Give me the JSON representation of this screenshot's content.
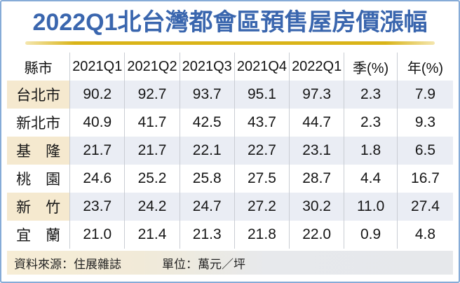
{
  "chart_data": {
    "type": "table",
    "title": "2022Q1北台灣都會區預售屋房價漲幅",
    "columns": [
      "縣市",
      "2021Q1",
      "2021Q2",
      "2021Q3",
      "2021Q4",
      "2022Q1",
      "季(%)",
      "年(%)"
    ],
    "rows": [
      [
        "台北市",
        "90.2",
        "92.7",
        "93.7",
        "95.1",
        "97.3",
        "2.3",
        "7.9"
      ],
      [
        "新北市",
        "40.9",
        "41.7",
        "42.5",
        "43.7",
        "44.7",
        "2.3",
        "9.3"
      ],
      [
        "基　隆",
        "21.7",
        "21.7",
        "22.1",
        "22.7",
        "23.1",
        "1.8",
        "6.5"
      ],
      [
        "桃　園",
        "24.6",
        "25.2",
        "25.8",
        "27.5",
        "28.7",
        "4.4",
        "16.7"
      ],
      [
        "新　竹",
        "23.7",
        "24.2",
        "24.7",
        "27.2",
        "30.2",
        "11.0",
        "27.4"
      ],
      [
        "宜　蘭",
        "21.0",
        "21.4",
        "21.3",
        "21.8",
        "22.0",
        "0.9",
        "4.8"
      ]
    ],
    "source": "資料來源：住展雜誌",
    "unit": "單位：萬元／坪",
    "layout_hints": {
      "shaded_row_indices": [
        0,
        2,
        4
      ],
      "grid": "vertical-separators-only",
      "legend": "none"
    }
  },
  "colors": {
    "title_blue": "#3A66AE",
    "rule_gold": "#D9B418",
    "frame_blue": "#86ABD7",
    "shaded_cell_bg": "#EAEDF4",
    "city_cell_bg": "#F5E9CF",
    "footer_left_bg": "#F7EDD5",
    "footer_right_bg": "#E6E8EB"
  }
}
